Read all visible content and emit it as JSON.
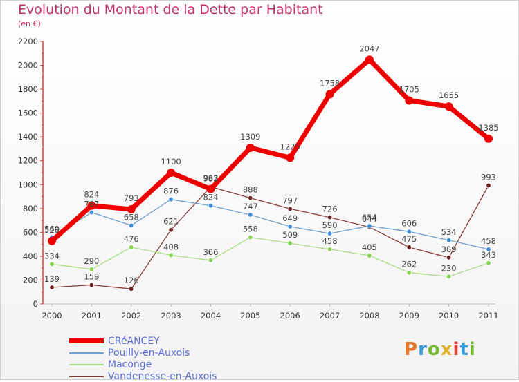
{
  "title": "Evolution du Montant de la Dette par Habitant",
  "subtitle": "(en €)",
  "logo": {
    "text": "Proxiti",
    "colors": [
      "#e8792b",
      "#3b9ad9",
      "#78b833",
      "#e0b52a",
      "#d9473b",
      "#3b9ad9",
      "#78b833"
    ]
  },
  "chart_data": {
    "type": "line",
    "x": [
      "2000",
      "2001",
      "2002",
      "2003",
      "2004",
      "2005",
      "2006",
      "2007",
      "2008",
      "2009",
      "2010",
      "2011"
    ],
    "ylim": [
      0,
      2200
    ],
    "yticks": [
      0,
      200,
      400,
      600,
      800,
      1000,
      1200,
      1400,
      1600,
      1800,
      2000,
      2200
    ],
    "grid": false,
    "legend_position": "bottom-left",
    "series": [
      {
        "name": "CRéANCEY",
        "color": "#ee0000",
        "width": 7,
        "marker": 6,
        "values": [
          528,
          824,
          793,
          1100,
          963,
          1309,
          1225,
          1758,
          2047,
          1705,
          1655,
          1385
        ]
      },
      {
        "name": "Pouilly-en-Auxois",
        "color": "#6e9fd0",
        "width": 1.3,
        "marker": 3.2,
        "dot": "#3d8ad6",
        "values": [
          560,
          767,
          658,
          876,
          824,
          747,
          649,
          590,
          654,
          606,
          534,
          458
        ]
      },
      {
        "name": "Maconge",
        "color": "#a8dd83",
        "width": 1.3,
        "marker": 3.2,
        "dot": "#86d250",
        "values": [
          334,
          290,
          476,
          408,
          366,
          558,
          509,
          458,
          405,
          262,
          230,
          343
        ]
      },
      {
        "name": "Vandenesse-en-Auxois",
        "color": "#8b3a3a",
        "width": 1.3,
        "marker": 3.2,
        "dot": "#6b1f1f",
        "values": [
          139,
          159,
          126,
          621,
          982,
          888,
          797,
          726,
          644,
          475,
          389,
          993
        ]
      }
    ]
  }
}
